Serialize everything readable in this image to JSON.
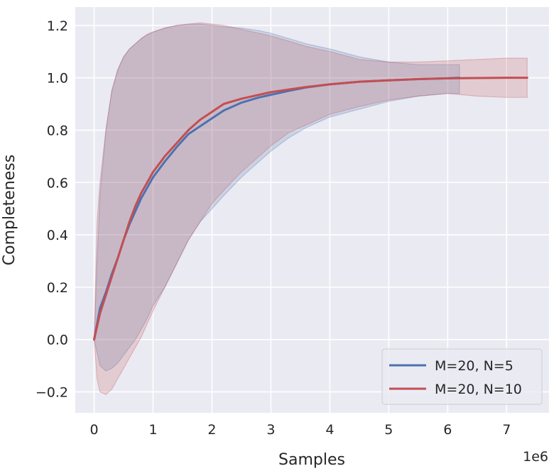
{
  "chart_data": {
    "type": "line",
    "title": "",
    "xlabel": "Samples",
    "ylabel": "Completeness",
    "x_offset_label": "1e6",
    "xlim": [
      -0.32,
      7.72
    ],
    "ylim": [
      -0.28,
      1.27
    ],
    "grid": true,
    "legend_position": "lower-right",
    "x_ticks": [
      0,
      1,
      2,
      3,
      4,
      5,
      6,
      7
    ],
    "x_tick_labels": [
      "0",
      "1",
      "2",
      "3",
      "4",
      "5",
      "6",
      "7"
    ],
    "y_ticks": [
      -0.2,
      0.0,
      0.2,
      0.4,
      0.6,
      0.8,
      1.0,
      1.2
    ],
    "y_tick_labels": [
      "−0.2",
      "0.0",
      "0.2",
      "0.4",
      "0.6",
      "0.8",
      "1.0",
      "1.2"
    ],
    "series": [
      {
        "name": "M=20, N=5",
        "color": "#4c72b0",
        "x": [
          0,
          0.05,
          0.1,
          0.2,
          0.3,
          0.4,
          0.5,
          0.6,
          0.7,
          0.8,
          0.9,
          1.0,
          1.2,
          1.4,
          1.6,
          1.8,
          2.0,
          2.2,
          2.5,
          2.8,
          3.0,
          3.3,
          3.6,
          4.0,
          4.5,
          5.0,
          5.5,
          6.0,
          6.2
        ],
        "mean": [
          0,
          0.06,
          0.12,
          0.18,
          0.25,
          0.31,
          0.38,
          0.44,
          0.49,
          0.54,
          0.58,
          0.62,
          0.68,
          0.735,
          0.785,
          0.815,
          0.845,
          0.875,
          0.905,
          0.925,
          0.935,
          0.95,
          0.963,
          0.975,
          0.985,
          0.99,
          0.995,
          0.998,
          1.0
        ],
        "lower": [
          0,
          -0.05,
          -0.1,
          -0.12,
          -0.11,
          -0.09,
          -0.06,
          -0.03,
          0.0,
          0.04,
          0.08,
          0.13,
          0.2,
          0.29,
          0.38,
          0.45,
          0.5,
          0.55,
          0.62,
          0.68,
          0.72,
          0.77,
          0.81,
          0.85,
          0.88,
          0.91,
          0.93,
          0.94,
          0.94
        ],
        "upper": [
          0,
          0.3,
          0.55,
          0.8,
          0.95,
          1.03,
          1.08,
          1.11,
          1.13,
          1.15,
          1.165,
          1.175,
          1.19,
          1.2,
          1.205,
          1.205,
          1.2,
          1.195,
          1.19,
          1.18,
          1.17,
          1.15,
          1.13,
          1.11,
          1.08,
          1.06,
          1.05,
          1.05,
          1.05
        ]
      },
      {
        "name": "M=20, N=10",
        "color": "#c44e52",
        "x": [
          0,
          0.05,
          0.1,
          0.2,
          0.3,
          0.4,
          0.5,
          0.6,
          0.7,
          0.8,
          0.9,
          1.0,
          1.2,
          1.4,
          1.6,
          1.8,
          2.0,
          2.2,
          2.5,
          2.8,
          3.0,
          3.3,
          3.6,
          4.0,
          4.5,
          5.0,
          5.5,
          6.0,
          6.5,
          7.0,
          7.35
        ],
        "mean": [
          0,
          0.05,
          0.1,
          0.17,
          0.24,
          0.31,
          0.38,
          0.45,
          0.51,
          0.56,
          0.6,
          0.64,
          0.7,
          0.75,
          0.8,
          0.84,
          0.87,
          0.9,
          0.92,
          0.935,
          0.945,
          0.955,
          0.965,
          0.975,
          0.985,
          0.99,
          0.995,
          0.998,
          0.999,
          1.0,
          1.0
        ],
        "lower": [
          0,
          -0.15,
          -0.2,
          -0.21,
          -0.19,
          -0.15,
          -0.11,
          -0.07,
          -0.03,
          0.01,
          0.06,
          0.11,
          0.2,
          0.29,
          0.38,
          0.45,
          0.52,
          0.57,
          0.64,
          0.7,
          0.74,
          0.79,
          0.82,
          0.86,
          0.89,
          0.915,
          0.93,
          0.94,
          0.93,
          0.925,
          0.925
        ],
        "upper": [
          0,
          0.45,
          0.6,
          0.8,
          0.95,
          1.03,
          1.08,
          1.11,
          1.13,
          1.15,
          1.165,
          1.175,
          1.19,
          1.2,
          1.205,
          1.21,
          1.205,
          1.2,
          1.185,
          1.17,
          1.16,
          1.14,
          1.12,
          1.1,
          1.07,
          1.06,
          1.06,
          1.065,
          1.07,
          1.075,
          1.075
        ]
      }
    ]
  }
}
